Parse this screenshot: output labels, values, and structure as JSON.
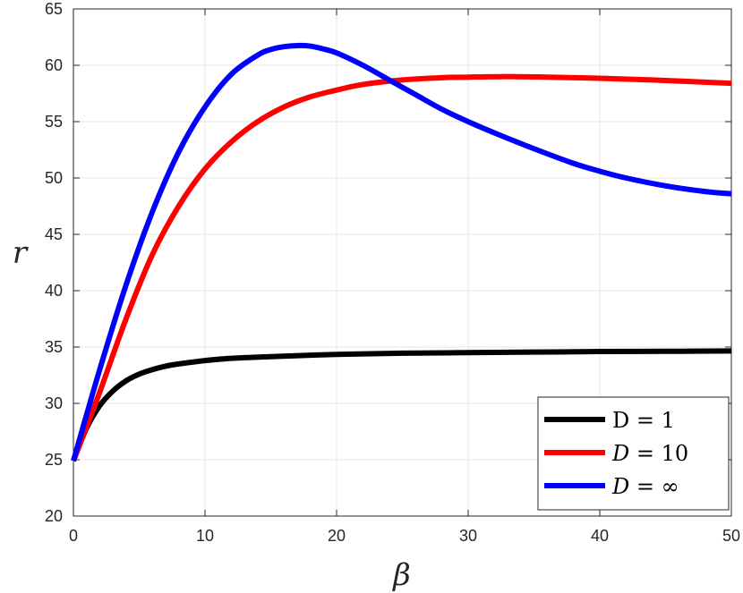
{
  "chart_data": {
    "type": "line",
    "title": "",
    "xlabel": "β",
    "ylabel": "r",
    "xlim": [
      0,
      50
    ],
    "ylim": [
      20,
      65
    ],
    "xticks": [
      "0",
      "10",
      "20",
      "30",
      "40",
      "50"
    ],
    "yticks": [
      "20",
      "25",
      "30",
      "35",
      "40",
      "45",
      "50",
      "55",
      "60",
      "65"
    ],
    "grid": true,
    "legend_position": "bottom-right",
    "series": [
      {
        "name": "D = 1",
        "color": "#000000",
        "x": [
          0,
          1,
          2,
          3,
          4,
          5,
          6,
          7,
          8,
          10,
          12,
          15,
          20,
          25,
          30,
          35,
          40,
          45,
          50
        ],
        "y": [
          24.9,
          27.8,
          29.8,
          31.1,
          32.0,
          32.6,
          33.0,
          33.3,
          33.5,
          33.8,
          34.0,
          34.15,
          34.35,
          34.45,
          34.5,
          34.55,
          34.6,
          34.62,
          34.65
        ]
      },
      {
        "name": "D = 10",
        "color": "#ff0000",
        "x": [
          0,
          2,
          4,
          6,
          8,
          10,
          12,
          14,
          16,
          18,
          20,
          22,
          25,
          28,
          30,
          33,
          36,
          40,
          44,
          48,
          50
        ],
        "y": [
          24.9,
          31.0,
          37.5,
          43.2,
          47.5,
          50.8,
          53.2,
          55.0,
          56.3,
          57.2,
          57.8,
          58.3,
          58.7,
          58.9,
          58.95,
          59.0,
          58.95,
          58.85,
          58.7,
          58.5,
          58.4
        ]
      },
      {
        "name": "D = ∞",
        "color": "#0000ff",
        "x": [
          0,
          2,
          4,
          6,
          8,
          10,
          12,
          14,
          15,
          16,
          17,
          18,
          19,
          20,
          22,
          24,
          26,
          28,
          30,
          32,
          35,
          38,
          40,
          42,
          45,
          48,
          50
        ],
        "y": [
          24.9,
          33.0,
          40.5,
          47.0,
          52.3,
          56.3,
          59.2,
          60.9,
          61.4,
          61.65,
          61.75,
          61.7,
          61.45,
          61.1,
          60.0,
          58.7,
          57.4,
          56.1,
          55.0,
          54.0,
          52.6,
          51.3,
          50.6,
          50.0,
          49.3,
          48.8,
          48.6
        ]
      }
    ]
  },
  "legend": {
    "entries": [
      {
        "label_prefix": "D",
        "label_rest": " = 1",
        "italic": false
      },
      {
        "label_prefix": "D",
        "label_rest": " = 10",
        "italic": true
      },
      {
        "label_prefix": "D",
        "label_rest": " = ∞",
        "italic": true
      }
    ]
  }
}
